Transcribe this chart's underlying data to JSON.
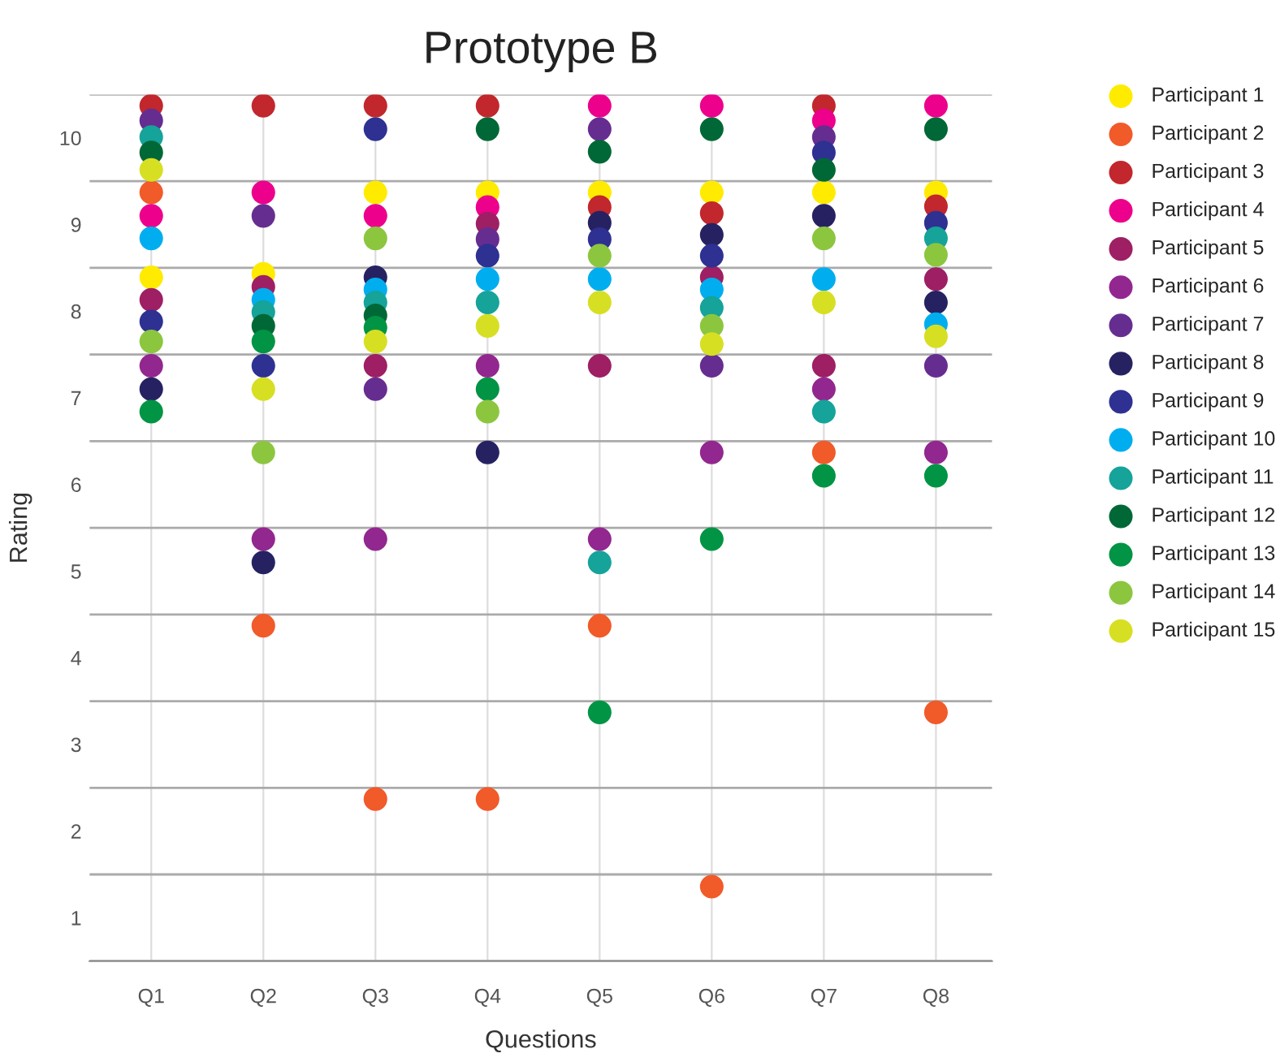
{
  "chart_data": {
    "type": "scatter",
    "title": "Prototype B",
    "xlabel": "Questions",
    "ylabel": "Rating",
    "categories": [
      "Q1",
      "Q2",
      "Q3",
      "Q4",
      "Q5",
      "Q6",
      "Q7",
      "Q8"
    ],
    "ylim": [
      0.5,
      10.5
    ],
    "yticks": [
      {
        "value": 0.5,
        "label": null
      },
      1,
      {
        "value": 1.5,
        "label": null
      },
      2,
      {
        "value": 2.5,
        "label": null
      },
      3,
      {
        "value": 3.5,
        "label": null
      },
      4,
      {
        "value": 4.5,
        "label": null
      },
      5,
      {
        "value": 5.5,
        "label": null
      },
      6,
      {
        "value": 6.5,
        "label": null
      },
      7,
      {
        "value": 7.5,
        "label": null
      },
      8,
      {
        "value": 8.5,
        "label": null
      },
      9,
      {
        "value": 9.5,
        "label": null
      },
      10,
      {
        "value": 10.5,
        "label": null
      }
    ],
    "grid": true,
    "legend": "right",
    "marker": "circle",
    "series": [
      {
        "name": "Participant 1",
        "color": "#ffeb00",
        "values": [
          8.39,
          8.43,
          9.37,
          9.37,
          9.37,
          9.37,
          9.37,
          9.37
        ]
      },
      {
        "name": "Participant 2",
        "color": "#f15a29",
        "values": [
          9.37,
          4.37,
          2.37,
          2.37,
          4.37,
          1.36,
          6.37,
          3.37
        ]
      },
      {
        "name": "Participant 3",
        "color": "#c1272d",
        "values": [
          10.37,
          10.37,
          10.37,
          10.37,
          9.2,
          9.13,
          10.37,
          9.21
        ]
      },
      {
        "name": "Participant 4",
        "color": "#ec008c",
        "values": [
          9.1,
          9.37,
          9.1,
          9.2,
          10.37,
          10.37,
          10.2,
          10.37
        ]
      },
      {
        "name": "Participant 5",
        "color": "#9e1f63",
        "values": [
          8.13,
          8.28,
          7.37,
          9.01,
          7.37,
          8.39,
          7.37,
          8.37
        ]
      },
      {
        "name": "Participant 6",
        "color": "#92278f",
        "values": [
          7.37,
          5.37,
          5.37,
          7.37,
          5.37,
          6.37,
          7.1,
          6.37
        ]
      },
      {
        "name": "Participant 7",
        "color": "#662d91",
        "values": [
          10.2,
          9.1,
          7.1,
          8.83,
          10.1,
          7.37,
          10.01,
          7.37
        ]
      },
      {
        "name": "Participant 8",
        "color": "#262262",
        "values": [
          7.1,
          5.1,
          8.39,
          6.37,
          9.02,
          8.88,
          9.1,
          8.1
        ]
      },
      {
        "name": "Participant 9",
        "color": "#2e3192",
        "values": [
          7.88,
          7.37,
          10.1,
          8.64,
          8.83,
          8.64,
          9.83,
          9.02
        ]
      },
      {
        "name": "Participant 10",
        "color": "#00aeef",
        "values": [
          8.84,
          8.13,
          8.25,
          8.37,
          8.37,
          8.25,
          8.37,
          7.85
        ]
      },
      {
        "name": "Participant 11",
        "color": "#15a39a",
        "values": [
          10.01,
          7.99,
          8.1,
          8.1,
          5.1,
          8.04,
          6.84,
          8.84
        ]
      },
      {
        "name": "Participant 12",
        "color": "#006837",
        "values": [
          9.83,
          7.83,
          7.95,
          10.1,
          9.84,
          10.1,
          9.63,
          10.1
        ]
      },
      {
        "name": "Participant 13",
        "color": "#009444",
        "values": [
          6.84,
          7.65,
          7.81,
          7.1,
          3.37,
          5.37,
          6.1,
          6.1
        ]
      },
      {
        "name": "Participant 14",
        "color": "#8cc63f",
        "values": [
          7.65,
          6.37,
          8.84,
          6.84,
          8.64,
          7.83,
          8.84,
          8.65
        ]
      },
      {
        "name": "Participant 15",
        "color": "#d7df23",
        "values": [
          9.63,
          7.1,
          7.65,
          7.83,
          8.1,
          7.62,
          8.1,
          7.71
        ]
      }
    ]
  }
}
